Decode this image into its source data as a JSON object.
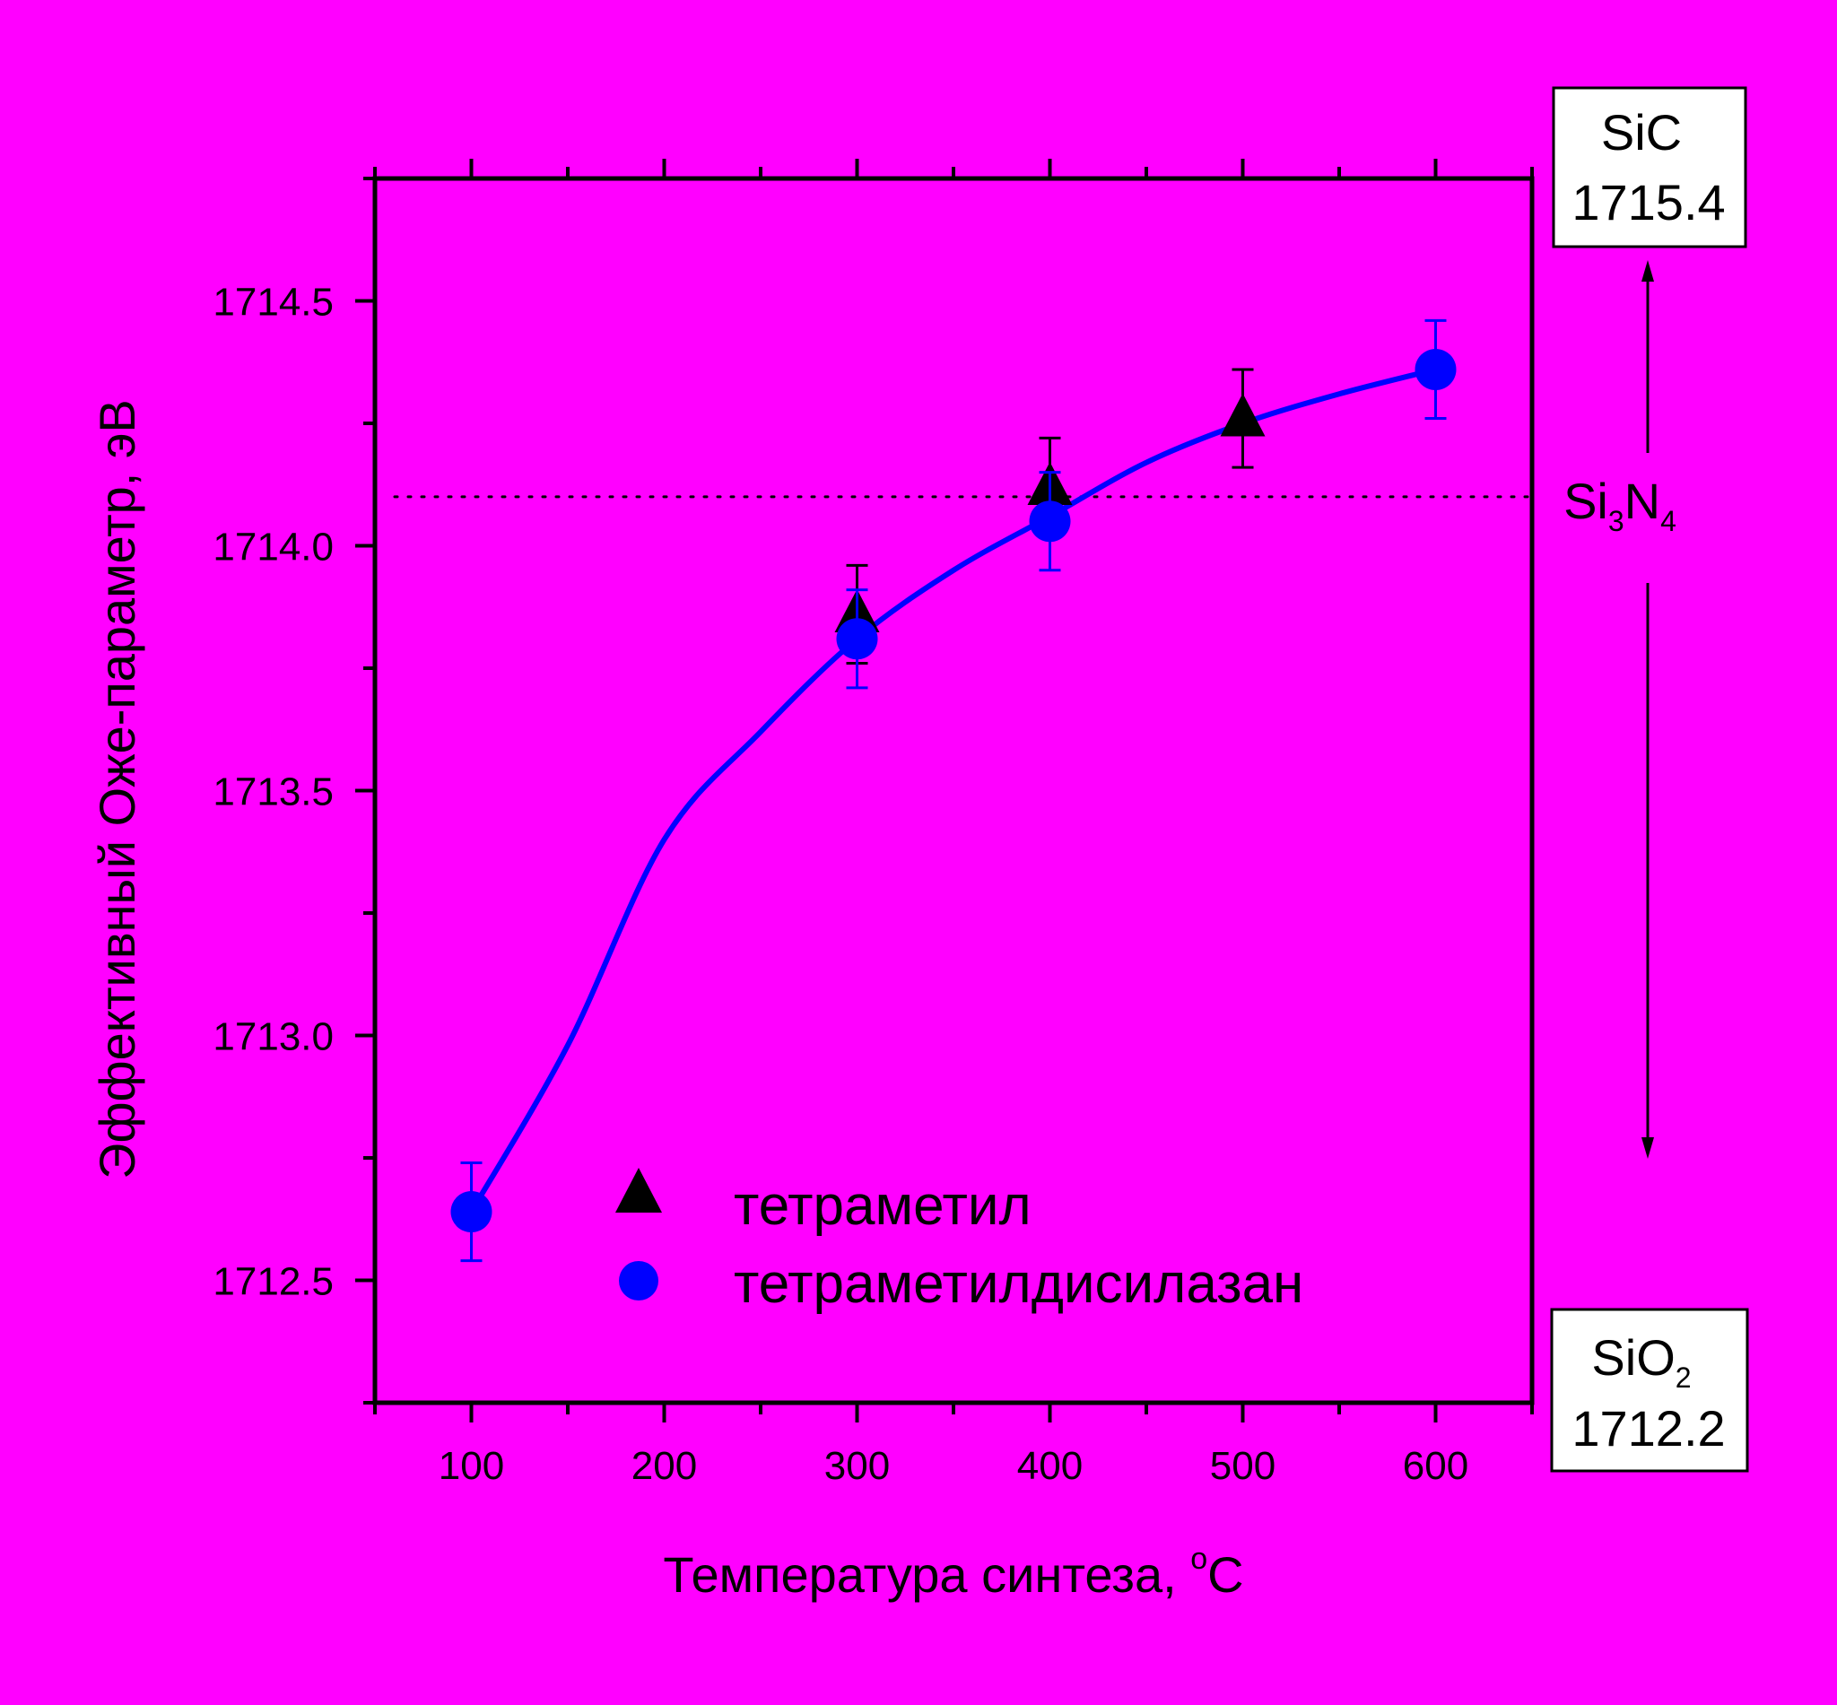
{
  "chart_data": {
    "type": "scatter",
    "xlabel_main": "Температура синтеза, ",
    "xlabel_degree": "o",
    "xlabel_unit": "C",
    "ylabel": "Эффективный Оже-параметр, эВ",
    "xlim": [
      50,
      650
    ],
    "ylim": [
      1712.25,
      1714.75
    ],
    "x_ticks": [
      100,
      200,
      300,
      400,
      500,
      600
    ],
    "y_ticks": [
      1712.5,
      1713.0,
      1713.5,
      1714.0,
      1714.5
    ],
    "x_tick_labels": [
      "100",
      "200",
      "300",
      "400",
      "500",
      "600"
    ],
    "y_tick_labels": [
      "1712.5",
      "1713.0",
      "1713.5",
      "1714.0",
      "1714.5"
    ],
    "legend_position": "bottom-center",
    "series": [
      {
        "name": "тетраметил",
        "marker": "triangle",
        "color": "#000000",
        "x": [
          300,
          400,
          500
        ],
        "y": [
          1713.86,
          1714.12,
          1714.26
        ],
        "err": [
          0.1,
          0.1,
          0.1
        ]
      },
      {
        "name": "тетраметилдисилазан",
        "marker": "circle",
        "color": "#0000ff",
        "x": [
          100,
          300,
          400,
          600
        ],
        "y": [
          1712.64,
          1713.81,
          1714.05,
          1714.36
        ],
        "err": [
          0.1,
          0.1,
          0.1,
          0.1
        ]
      }
    ],
    "fit_curve": {
      "color": "#0000ff",
      "x": [
        100,
        150,
        200,
        250,
        300,
        350,
        400,
        450,
        500,
        550,
        600
      ],
      "y": [
        1712.64,
        1712.98,
        1713.4,
        1713.62,
        1713.81,
        1713.95,
        1714.06,
        1714.17,
        1714.25,
        1714.31,
        1714.36
      ]
    },
    "reference_line": {
      "y": 1714.1,
      "style": "dotted"
    },
    "reference_labels": {
      "sic_name": "SiC",
      "sic_value": "1715.4",
      "si3n4_si": "Si",
      "si3n4_3": "3",
      "si3n4_n": "N",
      "si3n4_4": "4",
      "sio2_name": "SiO",
      "sio2_sub": "2",
      "sio2_value": "1712.2"
    }
  }
}
